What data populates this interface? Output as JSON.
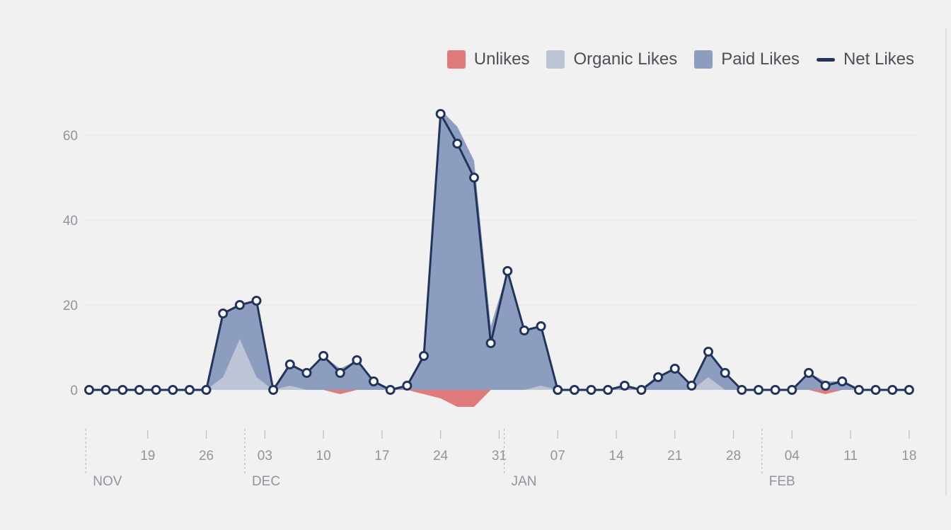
{
  "chart_data": {
    "type": "area",
    "title": "",
    "xlabel": "",
    "ylabel": "",
    "ylim": [
      -6,
      70
    ],
    "yticks": [
      0,
      20,
      40,
      60
    ],
    "grid": true,
    "legend_position": "top-right",
    "legend": [
      {
        "key": "unlikes",
        "label": "Unlikes",
        "kind": "box"
      },
      {
        "key": "organic",
        "label": "Organic Likes",
        "kind": "box"
      },
      {
        "key": "paid",
        "label": "Paid Likes",
        "kind": "box"
      },
      {
        "key": "net",
        "label": "Net Likes",
        "kind": "line"
      }
    ],
    "colors": {
      "unlikes": "#e07b7b",
      "organic": "#bcc4d6",
      "paid": "#8d9dbf",
      "net": "#23345c",
      "grid": "#e0e2e6",
      "tick_text": "#90949c",
      "background": "#f1f1f2"
    },
    "x_ticks": [
      {
        "label": "19",
        "x": 3.5
      },
      {
        "label": "26",
        "x": 7
      },
      {
        "label": "03",
        "x": 10.5
      },
      {
        "label": "10",
        "x": 14
      },
      {
        "label": "17",
        "x": 17.5
      },
      {
        "label": "24",
        "x": 21
      },
      {
        "label": "31",
        "x": 24.5
      },
      {
        "label": "07",
        "x": 28
      },
      {
        "label": "14",
        "x": 31.5
      },
      {
        "label": "21",
        "x": 35
      },
      {
        "label": "28",
        "x": 38.5
      },
      {
        "label": "04",
        "x": 42
      },
      {
        "label": "11",
        "x": 45.5
      },
      {
        "label": "18",
        "x": 49
      }
    ],
    "months": [
      {
        "label": "NOV",
        "x": -0.2
      },
      {
        "label": "DEC",
        "x": 9.3
      },
      {
        "label": "JAN",
        "x": 24.8
      },
      {
        "label": "FEB",
        "x": 40.2
      }
    ],
    "x": [
      0,
      1,
      2,
      3,
      4,
      5,
      6,
      7,
      8,
      9,
      10,
      11,
      12,
      13,
      14,
      15,
      16,
      17,
      18,
      19,
      20,
      21,
      22,
      23,
      24,
      25,
      26,
      27,
      28,
      29,
      30,
      31,
      32,
      33,
      34,
      35,
      36,
      37,
      38,
      39,
      40,
      41,
      42,
      43,
      44,
      45,
      46,
      47,
      48,
      49
    ],
    "series": [
      {
        "name": "Net Likes",
        "key": "net",
        "values": [
          0,
          0,
          0,
          0,
          0,
          0,
          0,
          0,
          18,
          20,
          21,
          0,
          6,
          4,
          8,
          4,
          7,
          2,
          0,
          1,
          8,
          65,
          58,
          50,
          11,
          28,
          14,
          15,
          0,
          0,
          0,
          0,
          1,
          0,
          3,
          5,
          1,
          9,
          4,
          0,
          0,
          0,
          0,
          4,
          1,
          2,
          0,
          0,
          0,
          0
        ]
      },
      {
        "name": "Paid Likes",
        "key": "paid",
        "values": [
          0,
          0,
          0,
          0,
          0,
          0,
          0,
          0,
          18,
          20,
          21,
          0,
          6,
          4,
          8,
          5,
          7,
          2,
          0,
          1,
          9,
          66,
          62,
          54,
          15,
          28,
          14,
          15,
          0,
          0,
          0,
          0,
          1,
          0,
          3,
          5,
          1,
          9,
          4,
          0,
          0,
          0,
          0,
          4,
          2,
          2,
          0,
          0,
          0,
          0
        ]
      },
      {
        "name": "Organic Likes",
        "key": "organic",
        "values": [
          0,
          0,
          0,
          0,
          0,
          0,
          0,
          0,
          3,
          12,
          3,
          0,
          1,
          0,
          0,
          0,
          0,
          0,
          0,
          0,
          0,
          0,
          0,
          0,
          0,
          0,
          0,
          1,
          0,
          0,
          0,
          0,
          0,
          0,
          0,
          0,
          0,
          3,
          0,
          0,
          0,
          0,
          0,
          0,
          0,
          0,
          0,
          0,
          0,
          0
        ]
      },
      {
        "name": "Unlikes",
        "key": "unlikes",
        "values": [
          0,
          0,
          0,
          0,
          0,
          0,
          0,
          0,
          0,
          0,
          0,
          0,
          0,
          0,
          0,
          -1,
          0,
          0,
          0,
          0,
          -1,
          -2,
          -4,
          -4,
          0,
          0,
          0,
          0,
          0,
          0,
          0,
          0,
          0,
          0,
          0,
          0,
          0,
          0,
          0,
          0,
          0,
          0,
          0,
          0,
          -1,
          0,
          0,
          0,
          0,
          0
        ]
      }
    ]
  }
}
